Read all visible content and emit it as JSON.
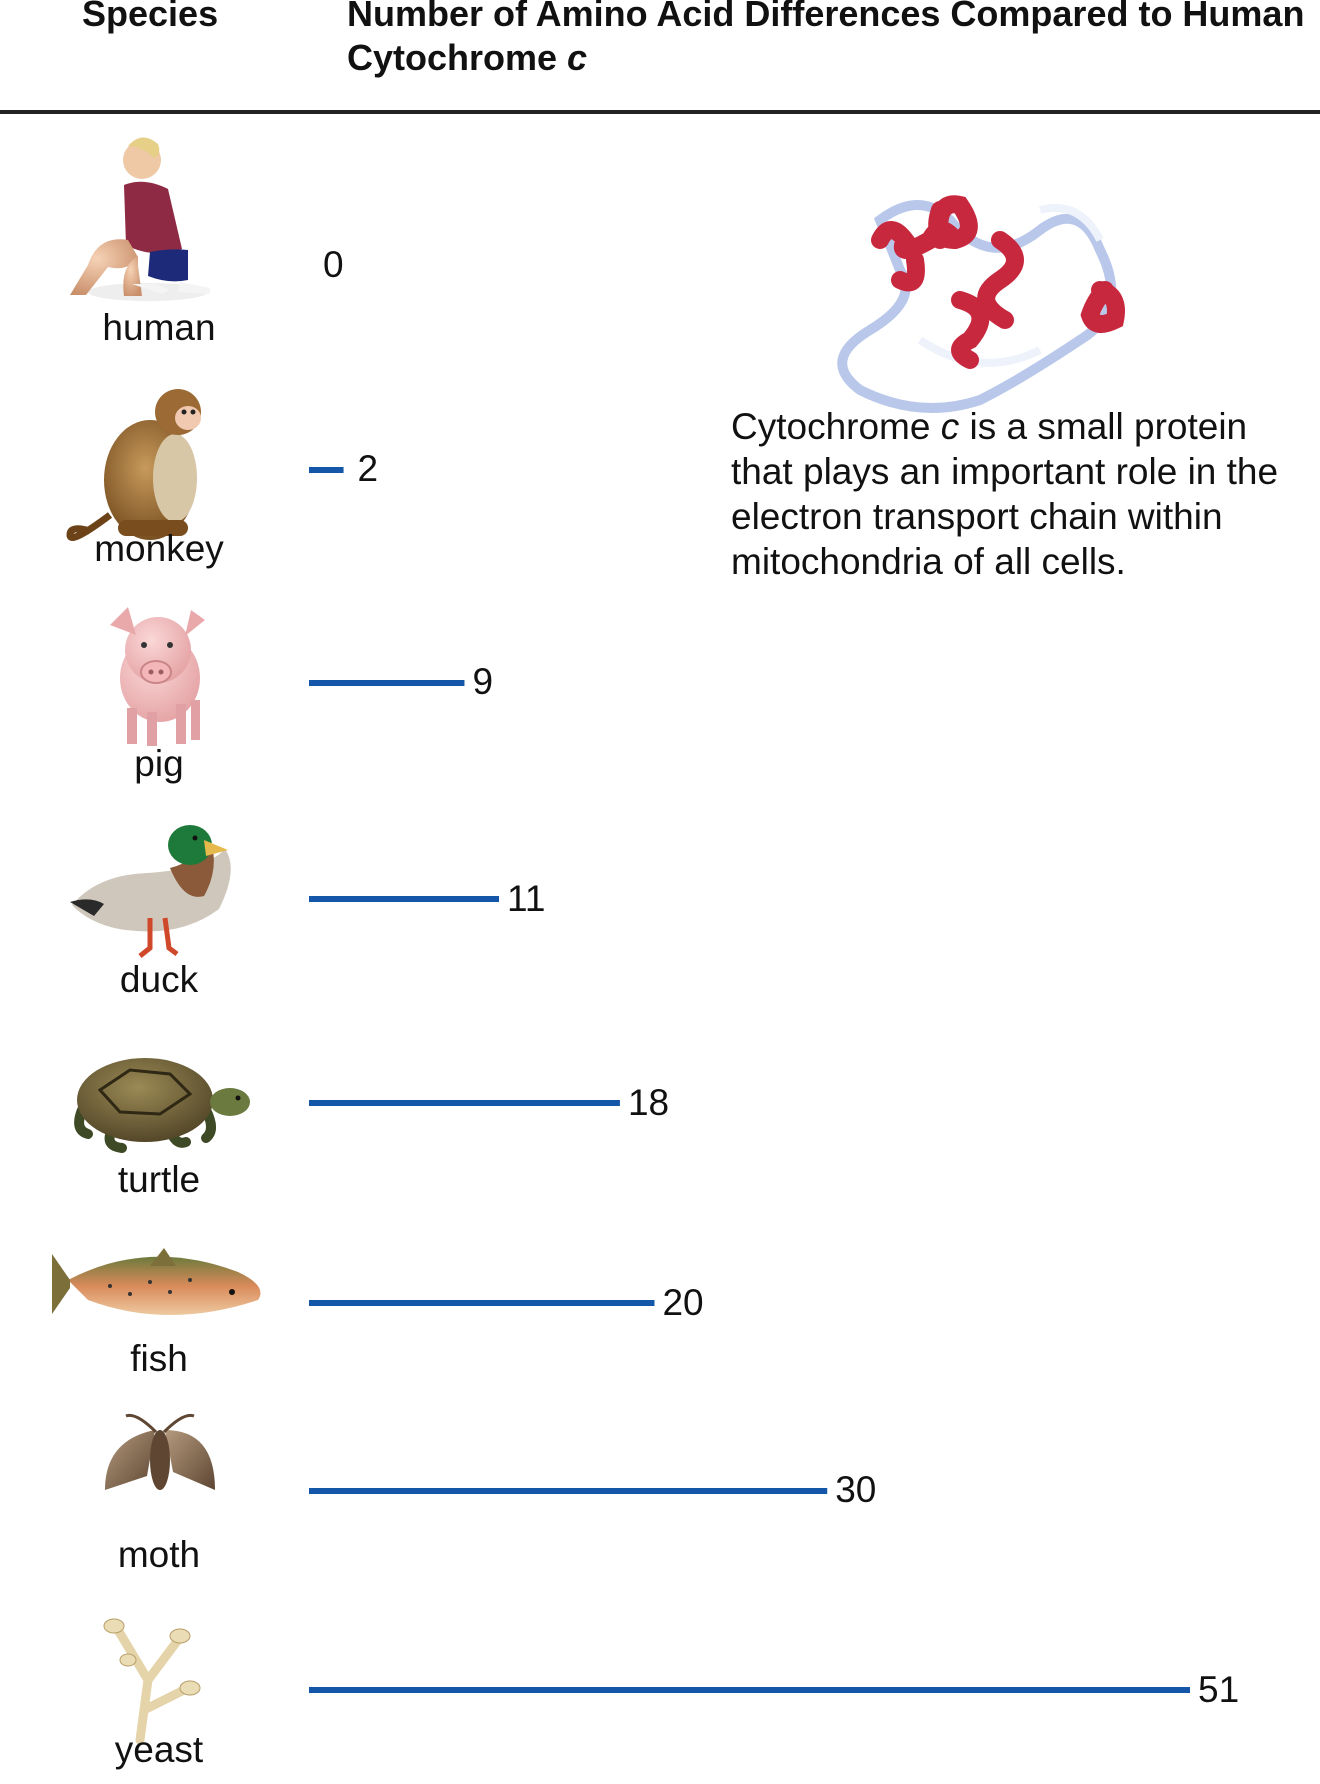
{
  "header": {
    "species_col": "Species",
    "metric_col_pre": "Number of Amino Acid Differences Compared to Human Cytochrome ",
    "metric_col_italic": "c"
  },
  "note": {
    "pre": "Cytochrome ",
    "italic": "c",
    "post": " is a small protein that plays an important role in the electron transport chain within mitochondria of all cells."
  },
  "colors": {
    "bar": "#1457a8",
    "helix": "#c8283e",
    "coil": "#b9c8ea"
  },
  "chart_data": {
    "type": "bar",
    "orientation": "horizontal",
    "title": "Number of Amino Acid Differences Compared to Human Cytochrome c",
    "categories": [
      "human",
      "monkey",
      "pig",
      "duck",
      "turtle",
      "fish",
      "moth",
      "yeast"
    ],
    "values": [
      0,
      2,
      9,
      11,
      18,
      20,
      30,
      51
    ],
    "icons": [
      "human-icon",
      "monkey-icon",
      "pig-icon",
      "duck-icon",
      "turtle-icon",
      "fish-icon",
      "moth-icon",
      "yeast-icon"
    ],
    "xlim": [
      0,
      51
    ],
    "grid": false,
    "legend": "none"
  }
}
